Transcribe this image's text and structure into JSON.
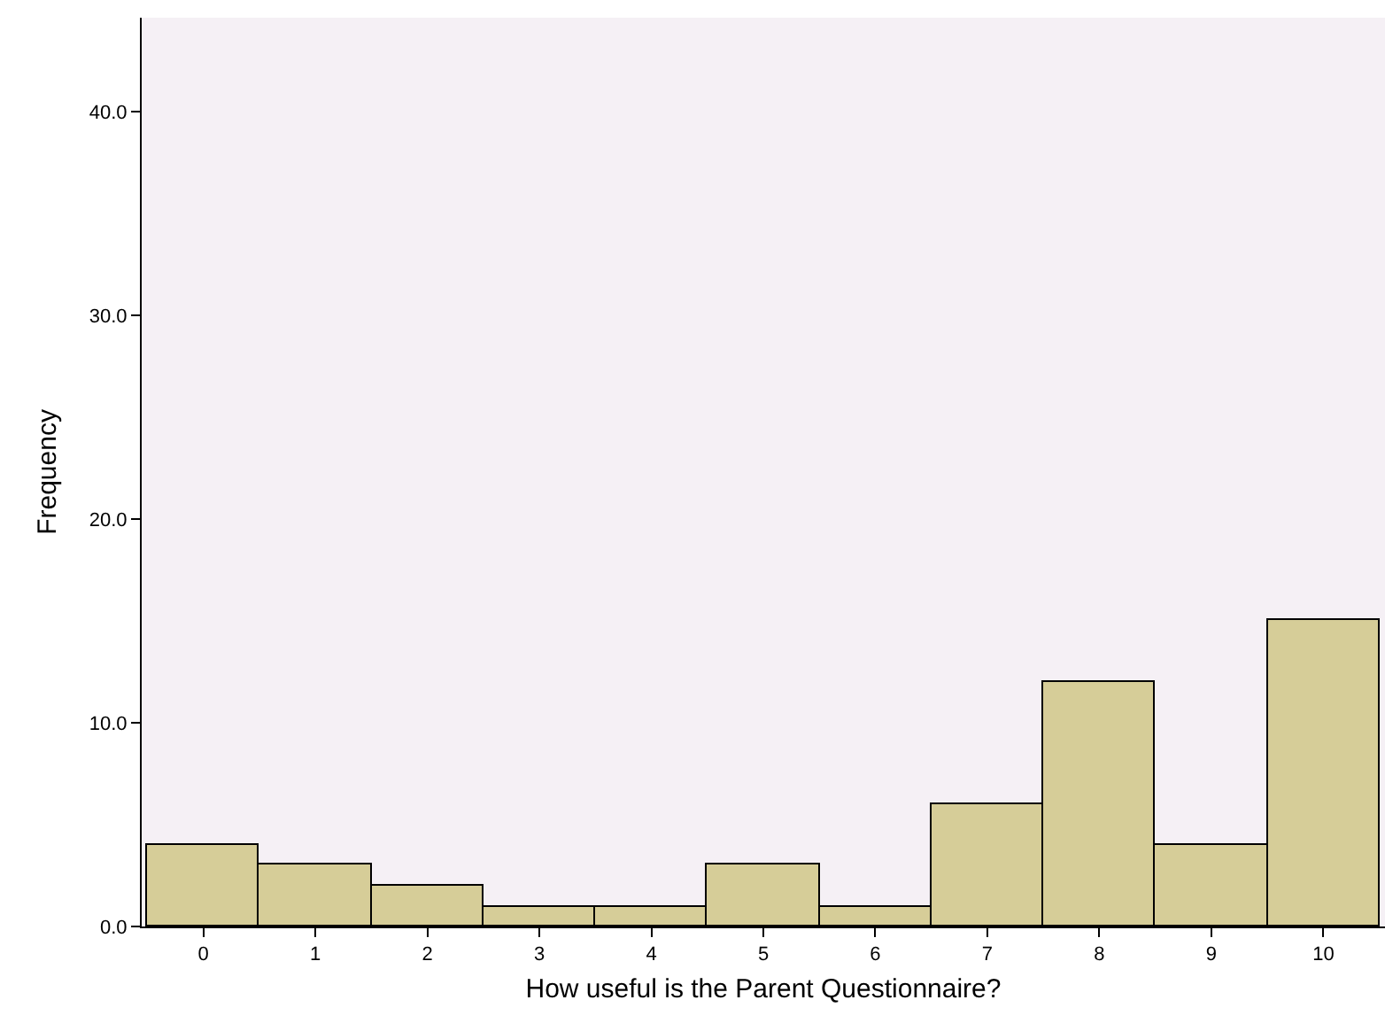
{
  "chart_data": {
    "type": "bar",
    "xlabel": "How useful is the Parent Questionnaire?",
    "ylabel": "Frequency",
    "categories": [
      "0",
      "1",
      "2",
      "3",
      "4",
      "5",
      "6",
      "7",
      "8",
      "9",
      "10"
    ],
    "values": [
      4,
      3,
      2,
      1,
      1,
      3,
      1,
      6,
      12,
      4,
      15
    ],
    "color": "#d6cd98",
    "ylim": [
      0,
      44.6
    ],
    "yticks": [
      {
        "value": 0,
        "label": "0.0"
      },
      {
        "value": 10,
        "label": "10.0"
      },
      {
        "value": 20,
        "label": "20.0"
      },
      {
        "value": 30,
        "label": "30.0"
      },
      {
        "value": 40,
        "label": "40.0"
      }
    ],
    "grid": false
  }
}
